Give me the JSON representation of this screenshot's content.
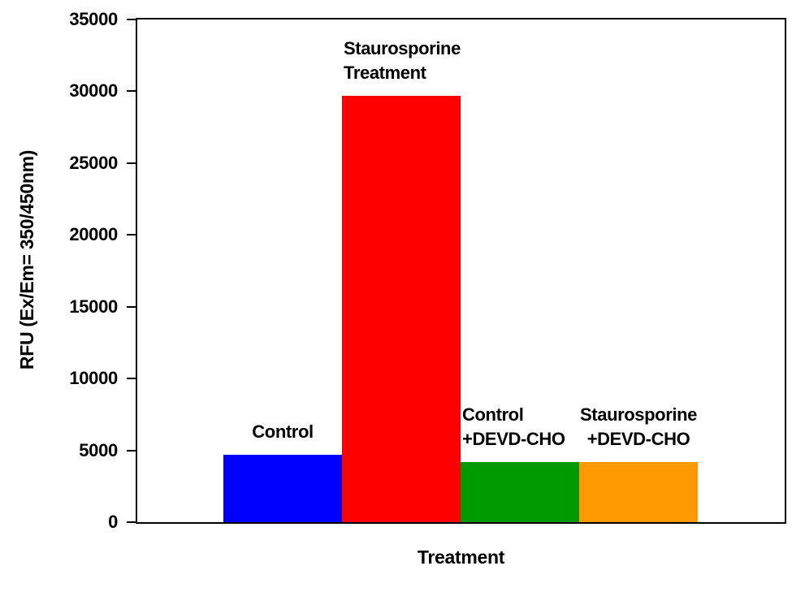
{
  "chart_data": {
    "type": "bar",
    "title": "",
    "xlabel": "Treatment",
    "ylabel": "RFU (Ex/Em= 350/450nm)",
    "ylim": [
      0,
      35000
    ],
    "ytick_interval": 5000,
    "ytick_labels": [
      "0",
      "5000",
      "10000",
      "15000",
      "20000",
      "25000",
      "30000",
      "35000"
    ],
    "grid": false,
    "legend_position": "none",
    "categories": [
      "Control",
      "Staurosporine Treatment",
      "Control +DEVD-CHO",
      "Staurosporine +DEVD-CHO"
    ],
    "values": [
      4700,
      29700,
      4200,
      4200
    ],
    "bars": [
      {
        "name": "control",
        "label_lines": [
          "Control"
        ],
        "value": 4700,
        "color": "#0000ff"
      },
      {
        "name": "staurosporine-treatment",
        "label_lines": [
          "Staurosporine",
          "Treatment"
        ],
        "value": 29700,
        "color": "#ff0000"
      },
      {
        "name": "control-devd-cho",
        "label_lines": [
          "Control",
          "+DEVD-CHO"
        ],
        "value": 4200,
        "color": "#009900"
      },
      {
        "name": "staurosporine-devd-cho",
        "label_lines": [
          "Staurosporine",
          "+DEVD-CHO"
        ],
        "value": 4200,
        "color": "#ff9900"
      }
    ]
  }
}
